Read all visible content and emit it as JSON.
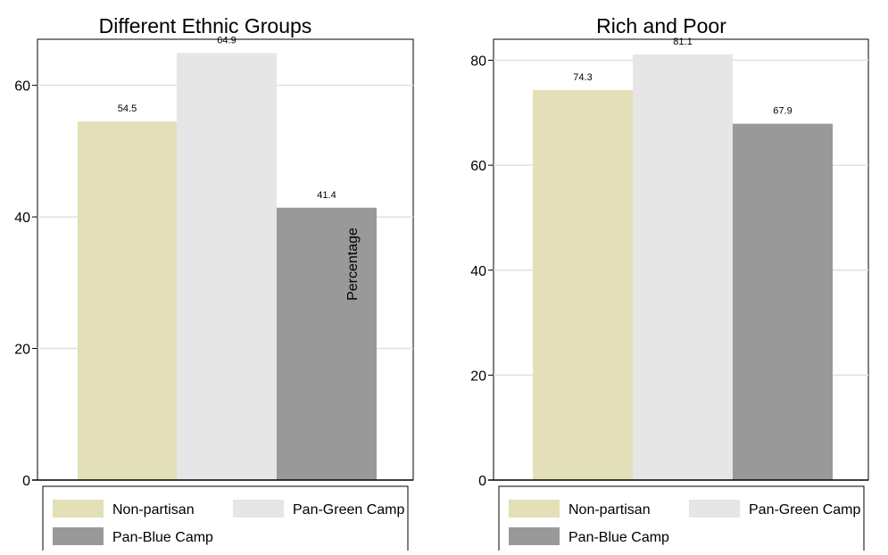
{
  "chart_data": [
    {
      "type": "bar",
      "title": "Different Ethnic Groups",
      "ylabel": "Percentage",
      "ylim": [
        0,
        67
      ],
      "yticks": [
        0,
        20,
        40,
        60
      ],
      "grid": true,
      "legend_position": "bottom",
      "series": [
        {
          "name": "Non-partisan",
          "values": [
            54.5
          ],
          "labels": [
            "54.5"
          ],
          "color": "#e3dfb8"
        },
        {
          "name": "Pan-Green Camp",
          "values": [
            64.9
          ],
          "labels": [
            "64.9"
          ],
          "color": "#e6e6e6"
        },
        {
          "name": "Pan-Blue Camp",
          "values": [
            41.4
          ],
          "labels": [
            "41.4"
          ],
          "color": "#999999"
        }
      ]
    },
    {
      "type": "bar",
      "title": "Rich and Poor",
      "ylabel": "",
      "ylim": [
        0,
        84
      ],
      "yticks": [
        0,
        20,
        40,
        60,
        80
      ],
      "grid": true,
      "legend_position": "bottom",
      "series": [
        {
          "name": "Non-partisan",
          "values": [
            74.3
          ],
          "labels": [
            "74.3"
          ],
          "color": "#e3dfb8"
        },
        {
          "name": "Pan-Green Camp",
          "values": [
            81.1
          ],
          "labels": [
            "81.1"
          ],
          "color": "#e6e6e6"
        },
        {
          "name": "Pan-Blue Camp",
          "values": [
            67.9
          ],
          "labels": [
            "67.9"
          ],
          "color": "#999999"
        }
      ]
    }
  ]
}
